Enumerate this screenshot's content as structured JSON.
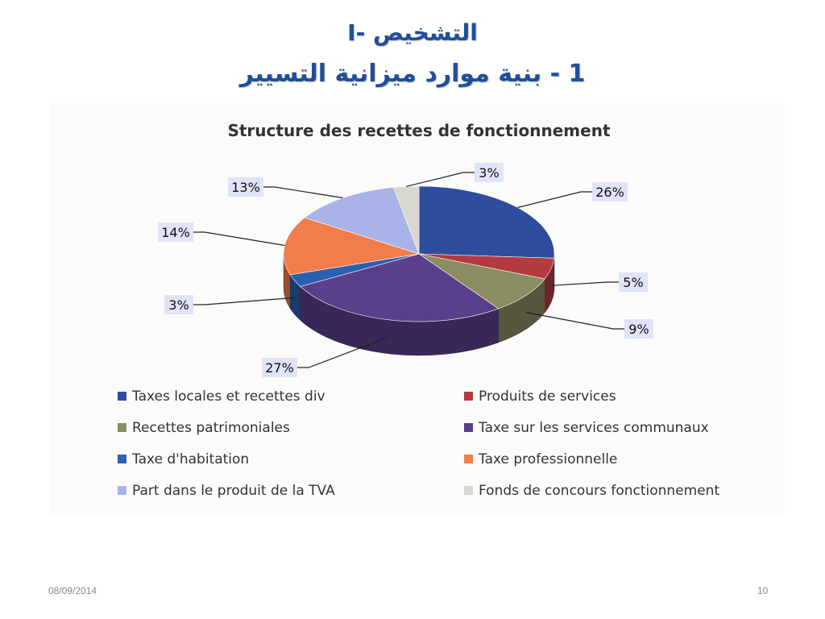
{
  "slide": {
    "title_line1": "I- التشخيص",
    "title_line2": "1 - بنية موارد ميزانية التسيير",
    "footer_date": "08/09/2014",
    "footer_page": "10"
  },
  "chart_data": {
    "type": "pie",
    "title": "Structure des recettes de fonctionnement",
    "three_d": true,
    "legend_position": "bottom",
    "slices": [
      {
        "label": "Taxes locales et recettes div",
        "value": 26,
        "display": "26%",
        "color": "#2e4d9e"
      },
      {
        "label": "Produits de services",
        "value": 5,
        "display": "5%",
        "color": "#b33a3f"
      },
      {
        "label": "Recettes patrimoniales",
        "value": 9,
        "display": "9%",
        "color": "#8c8c62"
      },
      {
        "label": "Taxe sur les services communaux",
        "value": 27,
        "display": "27%",
        "color": "#5b3f8c"
      },
      {
        "label": "Taxe d'habitation",
        "value": 3,
        "display": "3%",
        "color": "#2b5fb0"
      },
      {
        "label": "Taxe professionnelle",
        "value": 14,
        "display": "14%",
        "color": "#f07d4a"
      },
      {
        "label": "Part dans le produit de la TVA",
        "value": 13,
        "display": "13%",
        "color": "#a8b4e8"
      },
      {
        "label": "Fonds de concours fonctionnement",
        "value": 3,
        "display": "3%",
        "color": "#d8d8ce"
      }
    ]
  }
}
